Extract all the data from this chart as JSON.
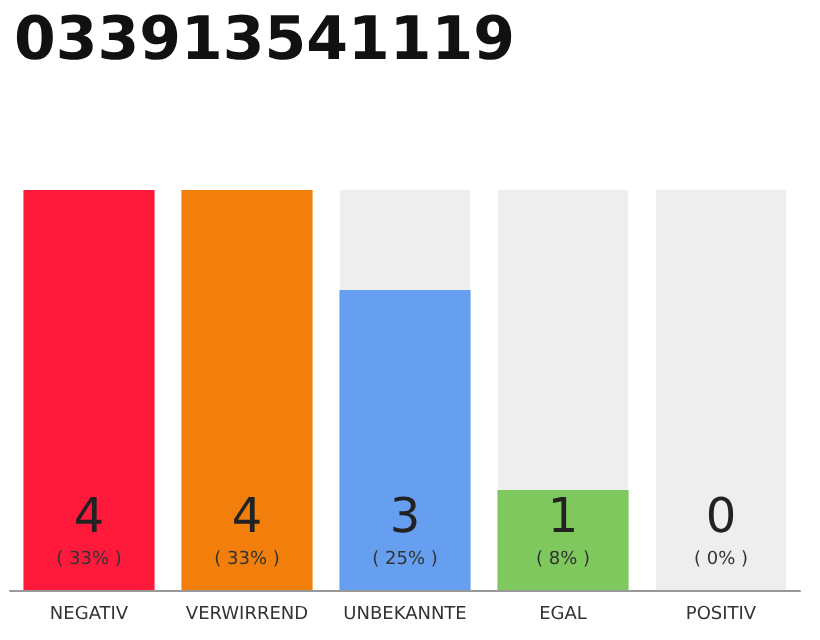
{
  "chart_data": {
    "type": "bar",
    "title": "033913541119",
    "categories": [
      "NEGATIV",
      "VERWIRREND",
      "UNBEKANNTE",
      "EGAL",
      "POSITIV"
    ],
    "values": [
      4,
      4,
      3,
      1,
      0
    ],
    "colors": [
      "#ff1a3c",
      "#f27f0c",
      "#669ef0",
      "#7ec85d",
      "#cccccc"
    ],
    "value_labels": [
      "4\n( 33% )",
      "4\n( 33% )",
      "3\n( 25% )",
      "1\n( 8% )",
      "0\n( 0% )"
    ]
  }
}
